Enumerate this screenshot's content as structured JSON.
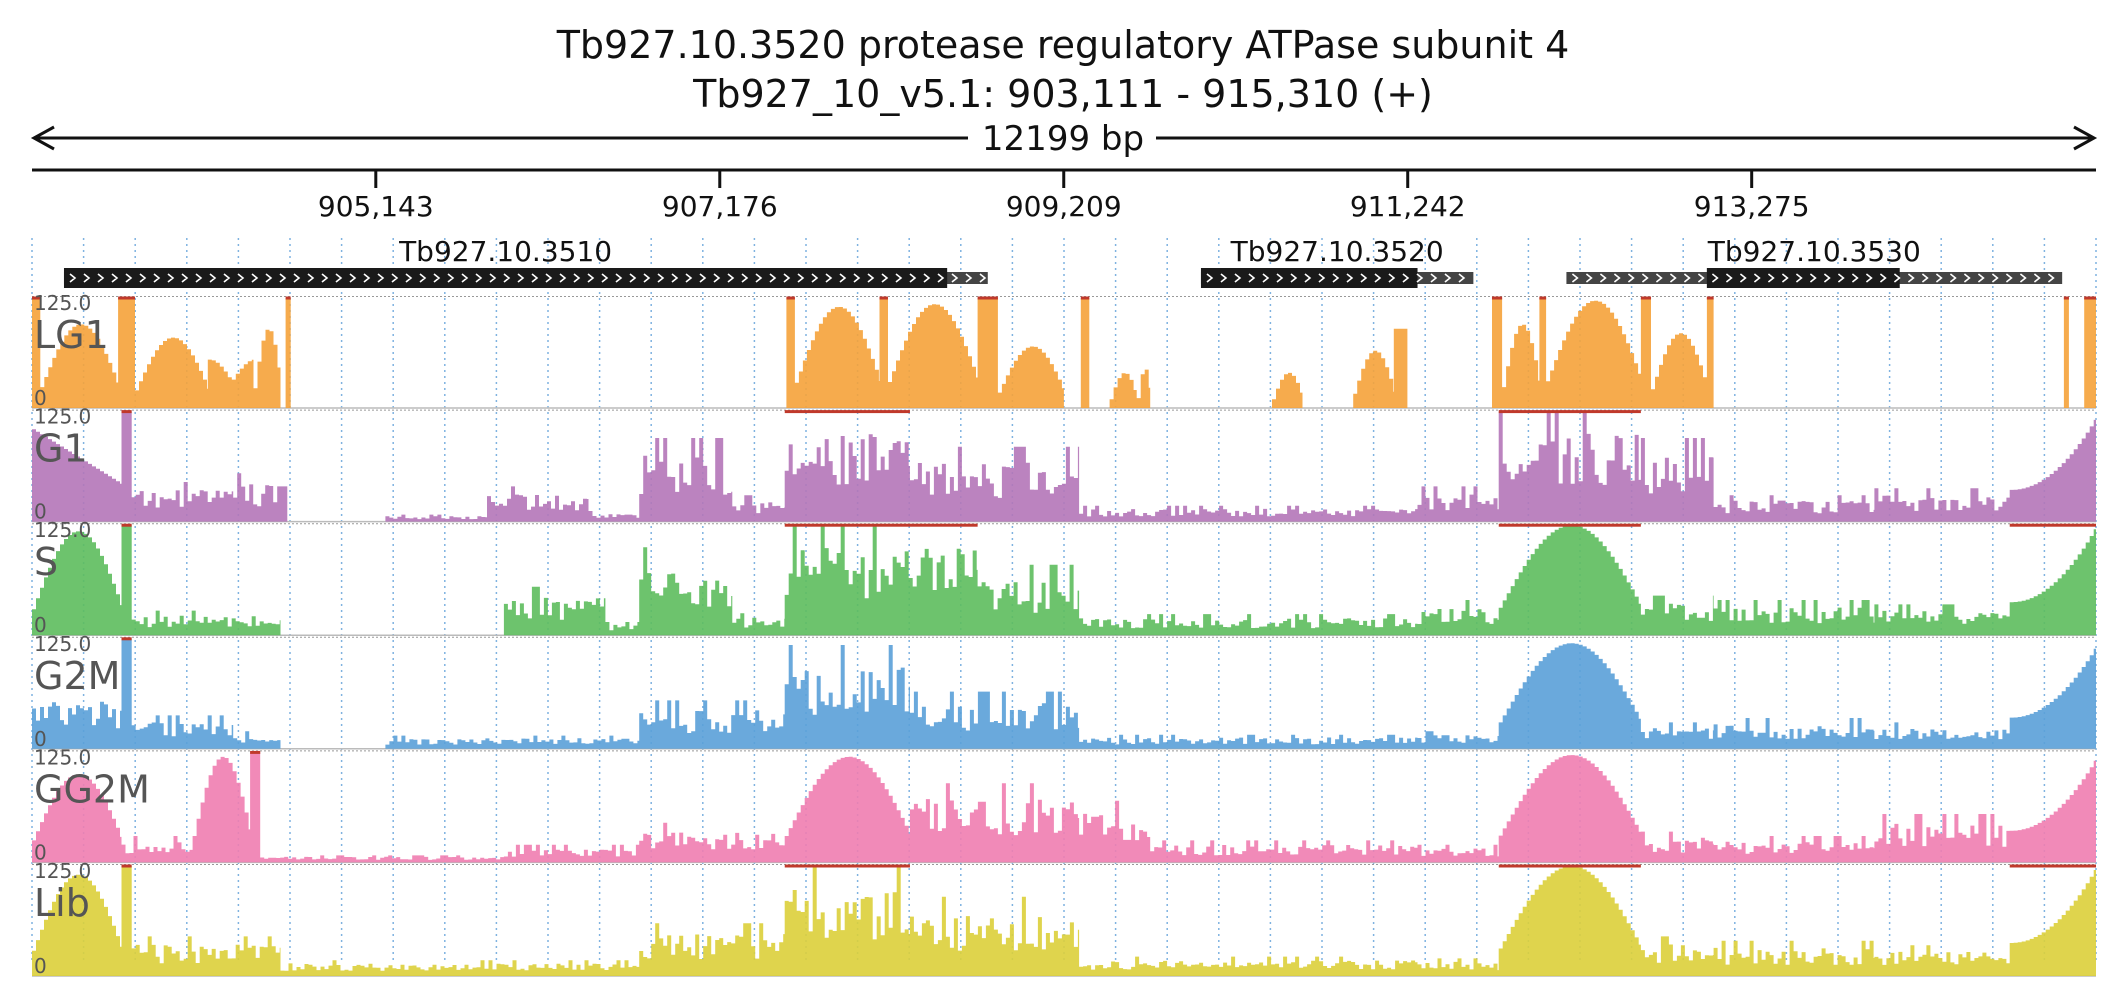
{
  "chart_data": {
    "type": "area",
    "title": "Tb927.10.3520  protease regulatory ATPase subunit 4",
    "subtitle": "Tb927_10_v5.1: 903,111 - 915,310 (+)",
    "length_label": "12199 bp",
    "xlim": [
      903111,
      915310
    ],
    "ticks": [
      {
        "value": 905143,
        "label": "905,143"
      },
      {
        "value": 907176,
        "label": "907,176"
      },
      {
        "value": 909209,
        "label": "909,209"
      },
      {
        "value": 911242,
        "label": "911,242"
      },
      {
        "value": 913275,
        "label": "913,275"
      }
    ],
    "grid": true,
    "genes": [
      {
        "name": "Tb927.10.3510",
        "strand": "+",
        "start": 903300,
        "end": 908760,
        "cds_start": 903300,
        "cds_end": 908520
      },
      {
        "name": "Tb927.10.3520",
        "strand": "+",
        "start": 910020,
        "end": 911630,
        "cds_start": 910020,
        "cds_end": 911300
      },
      {
        "name": "Tb927.10.3530",
        "strand": "+",
        "start": 912180,
        "end": 915110,
        "cds_start": 913010,
        "cds_end": 914150
      }
    ],
    "tracks": [
      {
        "name": "LG1",
        "color": "#f5a23a",
        "ymax_label": "125.0",
        "ymin_label": "0",
        "ylim": [
          0,
          125
        ]
      },
      {
        "name": "G1",
        "color": "#b475b8",
        "ymax_label": "125.0",
        "ymin_label": "0",
        "ylim": [
          0,
          125
        ]
      },
      {
        "name": "S",
        "color": "#5dbd5d",
        "ymax_label": "125.0",
        "ymin_label": "0",
        "ylim": [
          0,
          125
        ]
      },
      {
        "name": "G2M",
        "color": "#5aa0d8",
        "ymax_label": "125.0",
        "ymin_label": "0",
        "ylim": [
          0,
          125
        ]
      },
      {
        "name": "GG2M",
        "color": "#f07db0",
        "ymax_label": "125.0",
        "ymin_label": "0",
        "ylim": [
          0,
          125
        ]
      },
      {
        "name": "Lib",
        "color": "#dccf3a",
        "ymax_label": "125.0",
        "ymin_label": "0",
        "ylim": [
          0,
          125
        ]
      }
    ],
    "coverage_profiles": [
      {
        "series": "LG1",
        "segments": [
          {
            "start": 903111,
            "end": 903160,
            "shape": "flat",
            "peak": 125
          },
          {
            "start": 903160,
            "end": 903620,
            "shape": "hump",
            "peak": 95
          },
          {
            "start": 903620,
            "end": 903720,
            "shape": "flat",
            "peak": 125
          },
          {
            "start": 903720,
            "end": 904150,
            "shape": "hump",
            "peak": 80
          },
          {
            "start": 904150,
            "end": 904420,
            "shape": "dip",
            "peak": 55
          },
          {
            "start": 904420,
            "end": 904580,
            "shape": "hump",
            "peak": 90
          },
          {
            "start": 904580,
            "end": 904600,
            "shape": "flat",
            "peak": 0
          },
          {
            "start": 904600,
            "end": 904610,
            "shape": "flat",
            "peak": 0
          },
          {
            "start": 904610,
            "end": 904640,
            "shape": "flat",
            "peak": 125
          },
          {
            "start": 907570,
            "end": 907620,
            "shape": "flat",
            "peak": 125
          },
          {
            "start": 907620,
            "end": 908120,
            "shape": "hump",
            "peak": 115
          },
          {
            "start": 908120,
            "end": 908170,
            "shape": "flat",
            "peak": 125
          },
          {
            "start": 908170,
            "end": 908700,
            "shape": "hump",
            "peak": 118
          },
          {
            "start": 908700,
            "end": 908820,
            "shape": "flat",
            "peak": 125
          },
          {
            "start": 908820,
            "end": 909210,
            "shape": "hump",
            "peak": 70
          },
          {
            "start": 909310,
            "end": 909360,
            "shape": "flat",
            "peak": 125
          },
          {
            "start": 909480,
            "end": 909640,
            "shape": "hump",
            "peak": 40
          },
          {
            "start": 909640,
            "end": 909720,
            "shape": "hump",
            "peak": 45
          },
          {
            "start": 910440,
            "end": 910620,
            "shape": "hump",
            "peak": 40
          },
          {
            "start": 910920,
            "end": 911160,
            "shape": "hump",
            "peak": 65
          },
          {
            "start": 911160,
            "end": 911240,
            "shape": "flat",
            "peak": 90
          },
          {
            "start": 911740,
            "end": 911800,
            "shape": "flat",
            "peak": 125
          },
          {
            "start": 911800,
            "end": 912020,
            "shape": "hump",
            "peak": 95
          },
          {
            "start": 912020,
            "end": 912060,
            "shape": "flat",
            "peak": 125
          },
          {
            "start": 912060,
            "end": 912620,
            "shape": "hump",
            "peak": 122
          },
          {
            "start": 912620,
            "end": 912680,
            "shape": "flat",
            "peak": 125
          },
          {
            "start": 912680,
            "end": 913010,
            "shape": "hump",
            "peak": 85
          },
          {
            "start": 913010,
            "end": 913050,
            "shape": "flat",
            "peak": 125
          },
          {
            "start": 915120,
            "end": 915150,
            "shape": "flat",
            "peak": 125
          },
          {
            "start": 915240,
            "end": 915310,
            "shape": "flat",
            "peak": 125
          }
        ]
      },
      {
        "series": "G1",
        "segments": [
          {
            "start": 903111,
            "end": 903640,
            "shape": "decay",
            "peak": 105
          },
          {
            "start": 903640,
            "end": 903700,
            "shape": "flat",
            "peak": 125
          },
          {
            "start": 903700,
            "end": 904300,
            "shape": "noisy",
            "peak": 45
          },
          {
            "start": 904300,
            "end": 904560,
            "shape": "noisy",
            "peak": 55
          },
          {
            "start": 904560,
            "end": 904620,
            "shape": "flat",
            "peak": 40
          },
          {
            "start": 905200,
            "end": 905800,
            "shape": "noisy",
            "peak": 8
          },
          {
            "start": 905800,
            "end": 906400,
            "shape": "noisy",
            "peak": 40
          },
          {
            "start": 906400,
            "end": 906700,
            "shape": "noisy",
            "peak": 12
          },
          {
            "start": 906700,
            "end": 907250,
            "shape": "noisy",
            "peak": 95
          },
          {
            "start": 907250,
            "end": 907560,
            "shape": "noisy",
            "peak": 30
          },
          {
            "start": 907560,
            "end": 908300,
            "shape": "noisy",
            "peak": 125
          },
          {
            "start": 908300,
            "end": 909300,
            "shape": "noisy",
            "peak": 85
          },
          {
            "start": 909300,
            "end": 911300,
            "shape": "noisy",
            "peak": 18
          },
          {
            "start": 911300,
            "end": 911780,
            "shape": "noisy",
            "peak": 40
          },
          {
            "start": 911780,
            "end": 912620,
            "shape": "noisy",
            "peak": 125
          },
          {
            "start": 912620,
            "end": 913050,
            "shape": "noisy",
            "peak": 95
          },
          {
            "start": 913050,
            "end": 914000,
            "shape": "noisy",
            "peak": 30
          },
          {
            "start": 914000,
            "end": 914800,
            "shape": "noisy",
            "peak": 38
          },
          {
            "start": 914800,
            "end": 915310,
            "shape": "rise",
            "peak": 120
          }
        ]
      },
      {
        "series": "S",
        "segments": [
          {
            "start": 903111,
            "end": 903640,
            "shape": "hump",
            "peak": 118
          },
          {
            "start": 903640,
            "end": 903700,
            "shape": "flat",
            "peak": 125
          },
          {
            "start": 903700,
            "end": 904580,
            "shape": "noisy",
            "peak": 28
          },
          {
            "start": 905900,
            "end": 906500,
            "shape": "noisy",
            "peak": 55
          },
          {
            "start": 906500,
            "end": 906700,
            "shape": "noisy",
            "peak": 15
          },
          {
            "start": 906700,
            "end": 907250,
            "shape": "noisy",
            "peak": 100
          },
          {
            "start": 907250,
            "end": 907560,
            "shape": "noisy",
            "peak": 25
          },
          {
            "start": 907560,
            "end": 908700,
            "shape": "noisy",
            "peak": 125
          },
          {
            "start": 908700,
            "end": 909300,
            "shape": "noisy",
            "peak": 80
          },
          {
            "start": 909300,
            "end": 911300,
            "shape": "noisy",
            "peak": 24
          },
          {
            "start": 911300,
            "end": 911780,
            "shape": "noisy",
            "peak": 40
          },
          {
            "start": 911780,
            "end": 912620,
            "shape": "hump",
            "peak": 125
          },
          {
            "start": 912620,
            "end": 913050,
            "shape": "noisy",
            "peak": 45
          },
          {
            "start": 913050,
            "end": 914000,
            "shape": "noisy",
            "peak": 40
          },
          {
            "start": 914000,
            "end": 914800,
            "shape": "noisy",
            "peak": 35
          },
          {
            "start": 914800,
            "end": 915310,
            "shape": "rise",
            "peak": 125
          }
        ]
      },
      {
        "series": "G2M",
        "segments": [
          {
            "start": 903111,
            "end": 903640,
            "shape": "noisy",
            "peak": 70
          },
          {
            "start": 903640,
            "end": 903700,
            "shape": "flat",
            "peak": 125
          },
          {
            "start": 903700,
            "end": 904300,
            "shape": "noisy",
            "peak": 38
          },
          {
            "start": 904300,
            "end": 904580,
            "shape": "noisy",
            "peak": 20
          },
          {
            "start": 905200,
            "end": 906700,
            "shape": "noisy",
            "peak": 15
          },
          {
            "start": 906700,
            "end": 907560,
            "shape": "noisy",
            "peak": 55
          },
          {
            "start": 907560,
            "end": 908300,
            "shape": "noisy",
            "peak": 118
          },
          {
            "start": 908300,
            "end": 909300,
            "shape": "noisy",
            "peak": 65
          },
          {
            "start": 909300,
            "end": 911300,
            "shape": "noisy",
            "peak": 16
          },
          {
            "start": 911300,
            "end": 911780,
            "shape": "noisy",
            "peak": 20
          },
          {
            "start": 911780,
            "end": 912620,
            "shape": "hump",
            "peak": 120
          },
          {
            "start": 912620,
            "end": 913050,
            "shape": "noisy",
            "peak": 30
          },
          {
            "start": 913050,
            "end": 914000,
            "shape": "noisy",
            "peak": 35
          },
          {
            "start": 914000,
            "end": 914800,
            "shape": "noisy",
            "peak": 30
          },
          {
            "start": 914800,
            "end": 915310,
            "shape": "rise",
            "peak": 118
          }
        ]
      },
      {
        "series": "GG2M",
        "segments": [
          {
            "start": 903111,
            "end": 903640,
            "shape": "hump",
            "peak": 100
          },
          {
            "start": 903640,
            "end": 904060,
            "shape": "noisy",
            "peak": 30
          },
          {
            "start": 904060,
            "end": 904400,
            "shape": "hump",
            "peak": 120
          },
          {
            "start": 904400,
            "end": 904460,
            "shape": "flat",
            "peak": 125
          },
          {
            "start": 904460,
            "end": 905900,
            "shape": "noisy",
            "peak": 8
          },
          {
            "start": 905900,
            "end": 906700,
            "shape": "noisy",
            "peak": 20
          },
          {
            "start": 906700,
            "end": 907560,
            "shape": "noisy",
            "peak": 45
          },
          {
            "start": 907560,
            "end": 908300,
            "shape": "hump",
            "peak": 120
          },
          {
            "start": 908300,
            "end": 909300,
            "shape": "noisy",
            "peak": 90
          },
          {
            "start": 909300,
            "end": 909720,
            "shape": "noisy",
            "peak": 70
          },
          {
            "start": 909720,
            "end": 911300,
            "shape": "noisy",
            "peak": 25
          },
          {
            "start": 911300,
            "end": 911780,
            "shape": "noisy",
            "peak": 20
          },
          {
            "start": 911780,
            "end": 912620,
            "shape": "hump",
            "peak": 122
          },
          {
            "start": 912620,
            "end": 913050,
            "shape": "noisy",
            "peak": 35
          },
          {
            "start": 913050,
            "end": 914000,
            "shape": "noisy",
            "peak": 30
          },
          {
            "start": 914000,
            "end": 914800,
            "shape": "noisy",
            "peak": 55
          },
          {
            "start": 914800,
            "end": 915310,
            "shape": "rise",
            "peak": 120
          }
        ]
      },
      {
        "series": "Lib",
        "segments": [
          {
            "start": 903111,
            "end": 903640,
            "shape": "hump",
            "peak": 115
          },
          {
            "start": 903640,
            "end": 903700,
            "shape": "flat",
            "peak": 125
          },
          {
            "start": 903700,
            "end": 904580,
            "shape": "noisy",
            "peak": 45
          },
          {
            "start": 904580,
            "end": 906700,
            "shape": "noisy",
            "peak": 18
          },
          {
            "start": 906700,
            "end": 907560,
            "shape": "noisy",
            "peak": 60
          },
          {
            "start": 907560,
            "end": 908300,
            "shape": "noisy",
            "peak": 125
          },
          {
            "start": 908300,
            "end": 909300,
            "shape": "noisy",
            "peak": 90
          },
          {
            "start": 909300,
            "end": 911300,
            "shape": "noisy",
            "peak": 22
          },
          {
            "start": 911300,
            "end": 911780,
            "shape": "noisy",
            "peak": 20
          },
          {
            "start": 911780,
            "end": 912620,
            "shape": "hump",
            "peak": 125
          },
          {
            "start": 912620,
            "end": 913050,
            "shape": "noisy",
            "peak": 45
          },
          {
            "start": 913050,
            "end": 914000,
            "shape": "noisy",
            "peak": 40
          },
          {
            "start": 914000,
            "end": 914800,
            "shape": "noisy",
            "peak": 35
          },
          {
            "start": 914800,
            "end": 915310,
            "shape": "rise",
            "peak": 125
          }
        ]
      }
    ]
  }
}
